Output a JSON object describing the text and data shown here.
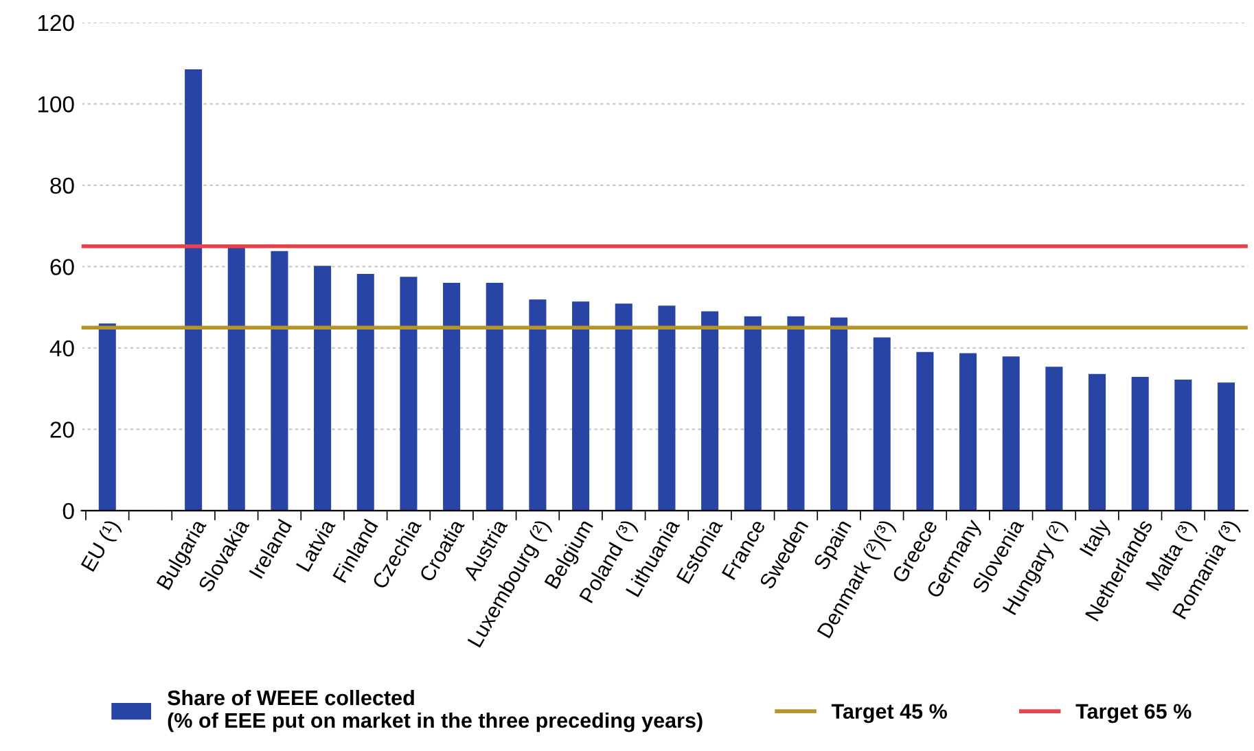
{
  "chart_data": {
    "type": "bar",
    "categories": [
      "EU (¹)",
      null,
      "Bulgaria",
      "Slovakia",
      "Ireland",
      "Latvia",
      "Finland",
      "Czechia",
      "Croatia",
      "Austria",
      "Luxembourg (²)",
      "Belgium",
      "Poland (³)",
      "Lithuania",
      "Estonia",
      "France",
      "Sweden",
      "Spain",
      "Denmark (²)(³)",
      "Greece",
      "Germany",
      "Slovenia",
      "Hungary (²)",
      "Italy",
      "Netherlands",
      "Malta (³)",
      "Romania (³)"
    ],
    "series": [
      {
        "name": "Share of WEEE collected\n(% of EEE put on market in the three preceding years)",
        "color": "#2845a6",
        "values": [
          46.0,
          null,
          108.5,
          65.0,
          63.8,
          60.2,
          58.2,
          57.5,
          56.0,
          56.0,
          51.9,
          51.4,
          50.9,
          50.4,
          49.0,
          47.8,
          47.8,
          47.5,
          42.6,
          39.0,
          38.7,
          37.9,
          35.4,
          33.6,
          32.9,
          32.2,
          31.5
        ]
      }
    ],
    "ylim": [
      0,
      120
    ],
    "yticks": [
      0,
      20,
      40,
      60,
      80,
      100,
      120
    ],
    "grid": "y",
    "legend": "bottom",
    "ref_lines": [
      {
        "axis": "y",
        "value": 45,
        "label": "Target 45 %",
        "color": "#b5942a"
      },
      {
        "axis": "y",
        "value": 65,
        "label": "Target 65 %",
        "color": "#e8434a"
      }
    ]
  }
}
